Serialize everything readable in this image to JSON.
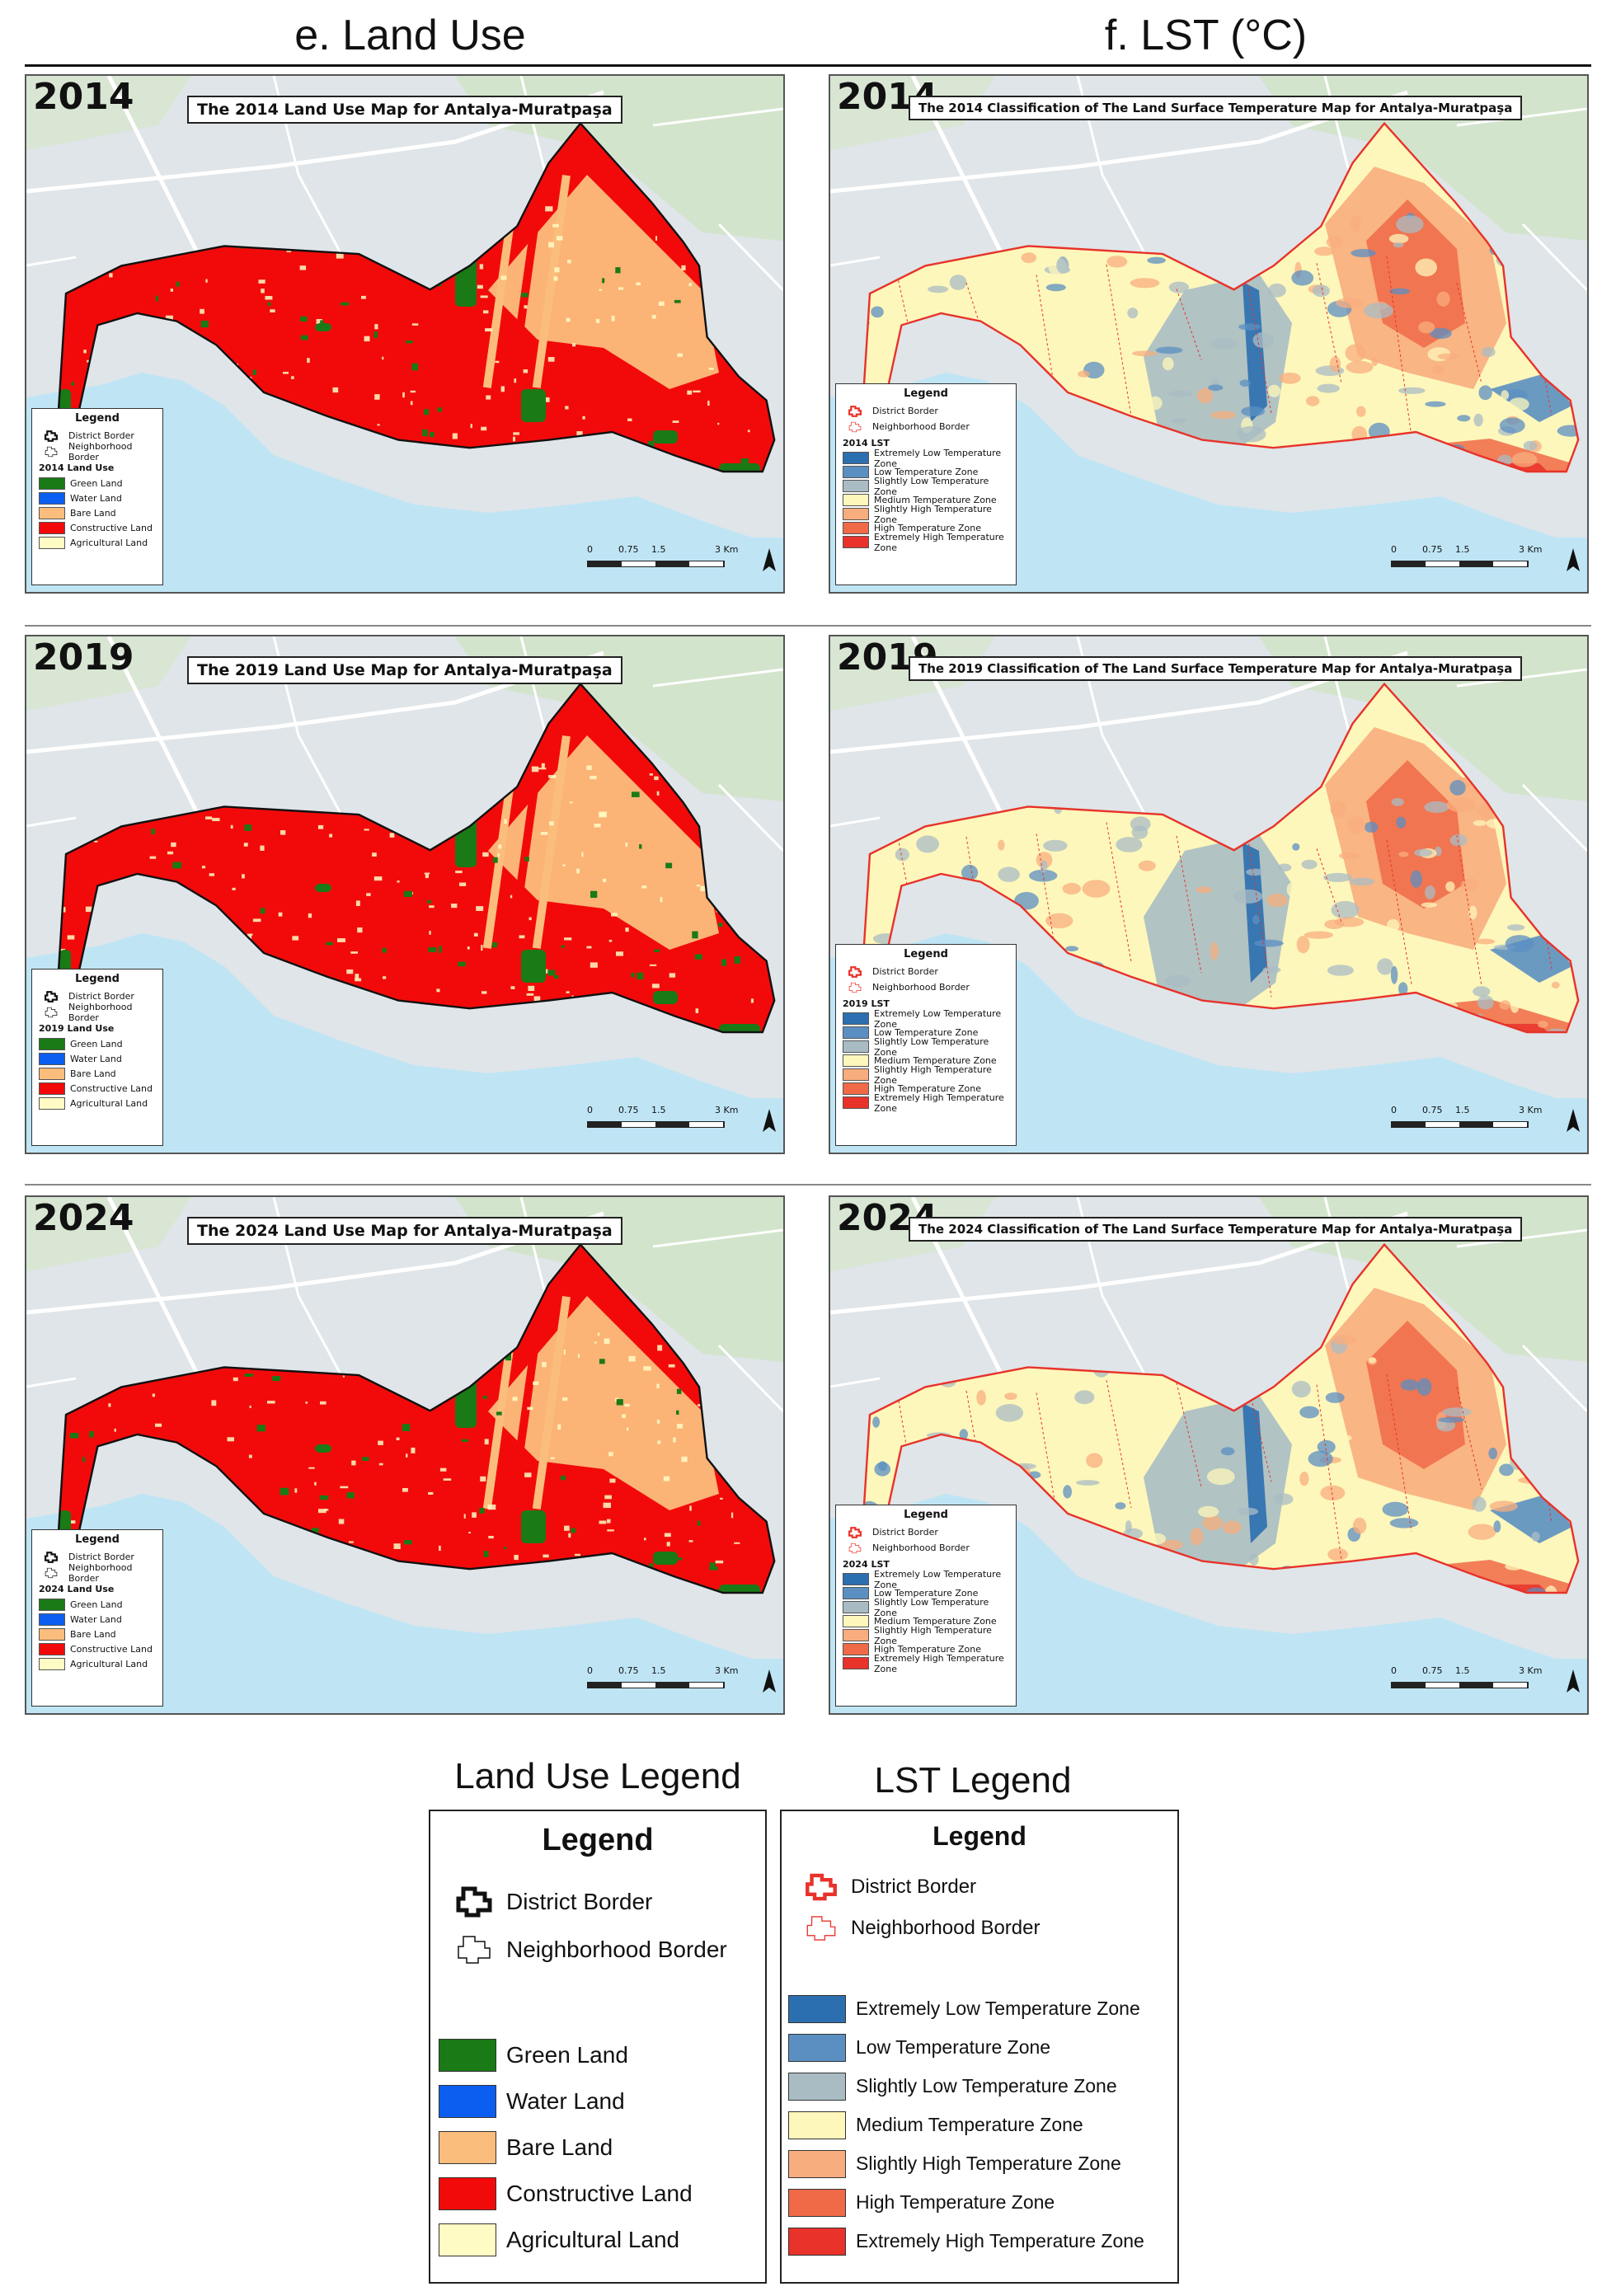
{
  "columns": {
    "land_use": "e. Land Use",
    "lst": "f. LST (°C)"
  },
  "colors": {
    "land_use": {
      "green": "#1a7a16",
      "water": "#0b5ef0",
      "bare": "#fbbd7c",
      "constructive": "#f20a0a",
      "agricultural": "#fffbc4"
    },
    "lst": {
      "extremely_low": "#2c6fb0",
      "low": "#5b8fc2",
      "slightly_low": "#a9bcc4",
      "medium": "#fdf7bb",
      "slightly_high": "#f8ad7e",
      "high": "#f06a47",
      "extremely_high": "#e8322a"
    },
    "sea": "#bfe5f5",
    "basemap": "#dfe5e8"
  },
  "panels": {
    "lu2014": {
      "year": "2014",
      "title": "The 2014 Land Use Map for Antalya-Muratpaşa",
      "legend_title": "Legend",
      "district_border": "District Border",
      "neighborhood_border": "Neighborhood Border",
      "section": "2014 Land Use",
      "classes": [
        "Green Land",
        "Water Land",
        "Bare Land",
        "Constructive Land",
        "Agricultural Land"
      ],
      "scale": [
        "0",
        "0.75",
        "1.5",
        "3 Km"
      ]
    },
    "lu2019": {
      "year": "2019",
      "title": "The 2019 Land Use Map for Antalya-Muratpaşa",
      "legend_title": "Legend",
      "district_border": "District Border",
      "neighborhood_border": "Neighborhood Border",
      "section": "2019 Land Use",
      "classes": [
        "Green Land",
        "Water Land",
        "Bare Land",
        "Constructive Land",
        "Agricultural Land"
      ],
      "scale": [
        "0",
        "0.75",
        "1.5",
        "3 Km"
      ]
    },
    "lu2024": {
      "year": "2024",
      "title": "The 2024 Land Use Map for Antalya-Muratpaşa",
      "legend_title": "Legend",
      "district_border": "District Border",
      "neighborhood_border": "Neighborhood Border",
      "section": "2024 Land Use",
      "classes": [
        "Green Land",
        "Water Land",
        "Bare Land",
        "Constructive Land",
        "Agricultural Land"
      ],
      "scale": [
        "0",
        "0.75",
        "1.5",
        "3 Km"
      ]
    },
    "lst2014": {
      "year": "2014",
      "title": "The 2014 Classification of The Land Surface Temperature Map for Antalya-Muratpaşa",
      "legend_title": "Legend",
      "district_border": "District Border",
      "neighborhood_border": "Neighborhood Border",
      "section": "2014 LST",
      "classes": [
        "Extremely Low Temperature Zone",
        "Low Temperature Zone",
        "Slightly Low Temperature Zone",
        "Medium Temperature Zone",
        "Slightly High Temperature Zone",
        "High Temperature Zone",
        "Extremely High Temperature Zone"
      ],
      "scale": [
        "0",
        "0.75",
        "1.5",
        "3 Km"
      ]
    },
    "lst2019": {
      "year": "2019",
      "title": "The 2019 Classification of The Land Surface Temperature Map for Antalya-Muratpaşa",
      "legend_title": "Legend",
      "district_border": "District Border",
      "neighborhood_border": "Neighborhood Border",
      "section": "2019 LST",
      "classes": [
        "Extremely Low Temperature Zone",
        "Low Temperature Zone",
        "Slightly Low Temperature Zone",
        "Medium Temperature Zone",
        "Slightly High Temperature Zone",
        "High Temperature Zone",
        "Extremely High Temperature Zone"
      ],
      "scale": [
        "0",
        "0.75",
        "1.5",
        "3 Km"
      ]
    },
    "lst2024": {
      "year": "2024",
      "title": "The 2024 Classification of The Land Surface Temperature Map for Antalya-Muratpaşa",
      "legend_title": "Legend",
      "district_border": "District Border",
      "neighborhood_border": "Neighborhood Border",
      "section": "2024 LST",
      "classes": [
        "Extremely Low Temperature Zone",
        "Low Temperature Zone",
        "Slightly Low Temperature Zone",
        "Medium Temperature Zone",
        "Slightly High Temperature Zone",
        "High Temperature Zone",
        "Extremely High Temperature Zone"
      ],
      "scale": [
        "0",
        "0.75",
        "1.5",
        "3 Km"
      ]
    }
  },
  "land_use_legend": {
    "caption": "Land Use Legend",
    "title": "Legend",
    "district_border": "District Border",
    "neighborhood_border": "Neighborhood Border",
    "items": [
      "Green Land",
      "Water Land",
      "Bare Land",
      "Constructive Land",
      "Agricultural Land"
    ]
  },
  "lst_legend": {
    "caption": "LST Legend",
    "title": "Legend",
    "district_border": "District Border",
    "neighborhood_border": "Neighborhood Border",
    "items": [
      "Extremely Low Temperature Zone",
      "Low Temperature Zone",
      "Slightly Low Temperature Zone",
      "Medium Temperature Zone",
      "Slightly High Temperature Zone",
      "High Temperature Zone",
      "Extremely High Temperature Zone"
    ]
  }
}
